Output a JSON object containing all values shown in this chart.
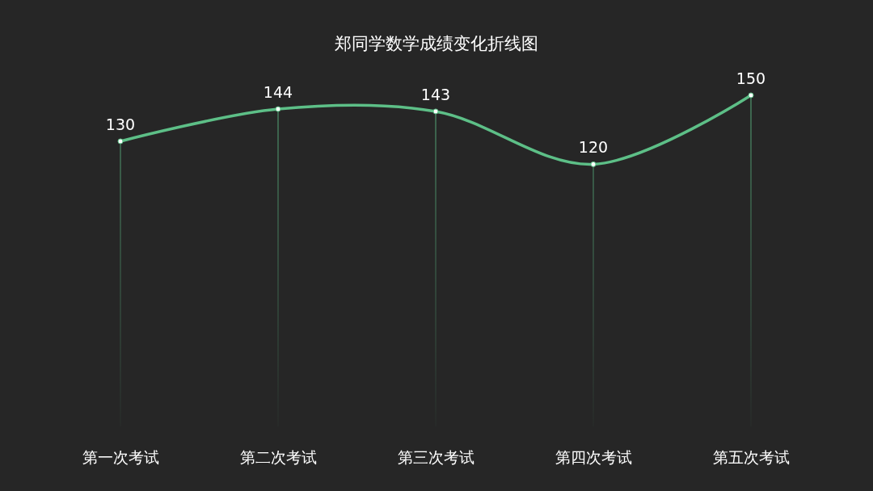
{
  "chart_data": {
    "type": "line",
    "title": "郑同学数学成绩变化折线图",
    "categories": [
      "第一次考试",
      "第二次考试",
      "第三次考试",
      "第四次考试",
      "第五次考试"
    ],
    "series": [
      {
        "color": "#5dbf87",
        "values": [
          130,
          144,
          143,
          120,
          150
        ]
      }
    ],
    "tick_labels": "x",
    "data_labels": true,
    "marker": "circle",
    "grid": "x",
    "line_style": "solid"
  }
}
